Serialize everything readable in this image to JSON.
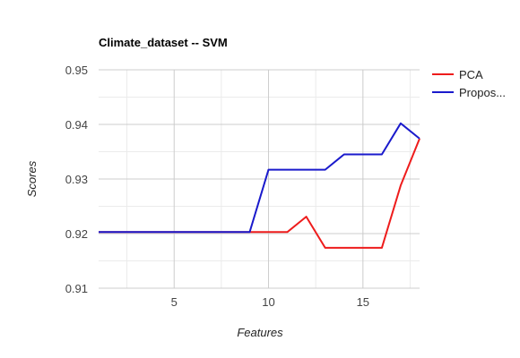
{
  "chart_data": {
    "type": "line",
    "title": "Climate_dataset -- SVM",
    "xlabel": "Features",
    "ylabel": "Scores",
    "xlim": [
      1,
      18
    ],
    "ylim": [
      0.91,
      0.95
    ],
    "x_ticks": [
      5,
      10,
      15
    ],
    "y_ticks": [
      0.91,
      0.92,
      0.93,
      0.94,
      0.95
    ],
    "x_tick_labels": [
      "5",
      "10",
      "15"
    ],
    "y_tick_labels": [
      "0.91",
      "0.92",
      "0.93",
      "0.94",
      "0.95"
    ],
    "grid": true,
    "legend": "right",
    "x": [
      1,
      2,
      3,
      4,
      5,
      6,
      7,
      8,
      9,
      10,
      11,
      12,
      13,
      14,
      15,
      16,
      17,
      18
    ],
    "series": [
      {
        "name": "PCA",
        "legend_label": "PCA",
        "color": "#ee1c1c",
        "values": [
          0.9203,
          0.9203,
          0.9203,
          0.9203,
          0.9203,
          0.9203,
          0.9203,
          0.9203,
          0.9203,
          0.9203,
          0.9203,
          0.9231,
          0.9174,
          0.9174,
          0.9174,
          0.9174,
          0.9288,
          0.9374
        ]
      },
      {
        "name": "Propos...",
        "legend_label": "Propos...",
        "color": "#1a1acc",
        "values": [
          0.9203,
          0.9203,
          0.9203,
          0.9203,
          0.9203,
          0.9203,
          0.9203,
          0.9203,
          0.9203,
          0.9317,
          0.9317,
          0.9317,
          0.9317,
          0.9345,
          0.9345,
          0.9345,
          0.9402,
          0.9374
        ]
      }
    ]
  }
}
